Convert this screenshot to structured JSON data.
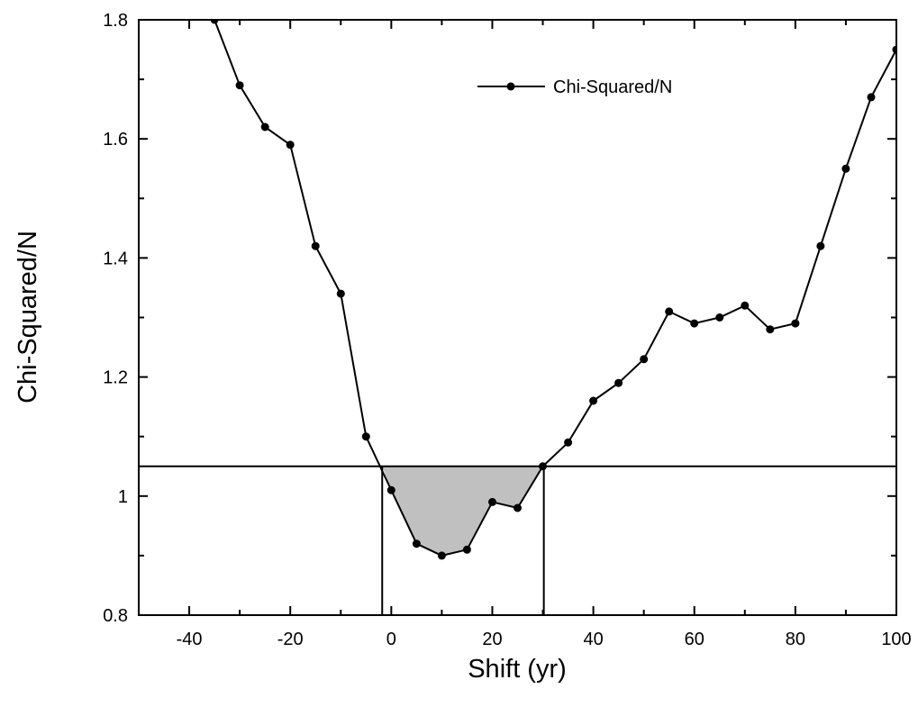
{
  "chart_data": {
    "type": "line",
    "xlabel": "Shift (yr)",
    "ylabel": "Chi-Squared/N",
    "xlim": [
      -50,
      100
    ],
    "ylim": [
      0.8,
      1.8
    ],
    "xticks": [
      -40,
      -20,
      0,
      20,
      40,
      60,
      80,
      100
    ],
    "xtick_labels": [
      "-40",
      "-20",
      "0",
      "20",
      "40",
      "60",
      "80",
      "100"
    ],
    "yticks": [
      0.8,
      1.0,
      1.2,
      1.4,
      1.6,
      1.8
    ],
    "ytick_labels": [
      "0.8",
      "1",
      "1.2",
      "1.4",
      "1.6",
      "1.8"
    ],
    "grid": false,
    "legend_position": "top-right",
    "series": [
      {
        "name": "Chi-Squared/N",
        "color": "#000000",
        "marker": "circle",
        "x": [
          -35,
          -30,
          -25,
          -20,
          -15,
          -10,
          -5,
          0,
          5,
          10,
          15,
          20,
          25,
          30,
          35,
          40,
          45,
          50,
          55,
          60,
          65,
          70,
          75,
          80,
          85,
          90,
          95,
          100
        ],
        "y": [
          1.8,
          1.69,
          1.62,
          1.59,
          1.42,
          1.34,
          1.1,
          1.01,
          0.92,
          0.9,
          0.91,
          0.99,
          0.98,
          1.05,
          1.09,
          1.16,
          1.19,
          1.23,
          1.31,
          1.29,
          1.3,
          1.32,
          1.28,
          1.29,
          1.42,
          1.55,
          1.67,
          1.75
        ]
      }
    ],
    "threshold": {
      "y": 1.05,
      "x_low": -1.8,
      "x_high": 30.2,
      "fill_color": "#c0c0c0"
    }
  }
}
